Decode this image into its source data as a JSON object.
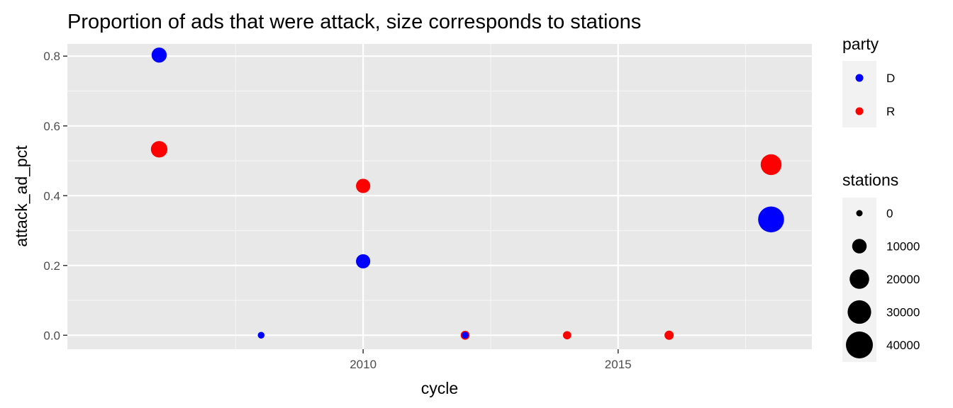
{
  "chart_data": {
    "type": "scatter",
    "title": "Proportion of ads that were attack, size corresponds to stations",
    "xlabel": "cycle",
    "ylabel": "attack_ad_pct",
    "xlim": [
      2004.2,
      2018.8
    ],
    "ylim": [
      -0.04,
      0.835
    ],
    "x_ticks": [
      2010,
      2015
    ],
    "y_ticks": [
      0.0,
      0.2,
      0.4,
      0.6,
      0.8
    ],
    "y_tick_labels": [
      "0.0",
      "0.2",
      "0.4",
      "0.6",
      "0.8"
    ],
    "grid": true,
    "legend_placement": "right",
    "colors": {
      "D": "#0000ff",
      "R": "#ff0000",
      "panel": "#e8e8e8",
      "legend_key": "#f2f2f2"
    },
    "color_legend": {
      "title": "party",
      "entries": [
        {
          "label": "D",
          "color": "#0000ff"
        },
        {
          "label": "R",
          "color": "#ff0000"
        }
      ]
    },
    "size_legend": {
      "title": "stations",
      "entries": [
        {
          "label": "0",
          "value": 0
        },
        {
          "label": "10000",
          "value": 10000
        },
        {
          "label": "20000",
          "value": 20000
        },
        {
          "label": "30000",
          "value": 30000
        },
        {
          "label": "40000",
          "value": 40000
        }
      ]
    },
    "points": [
      {
        "cycle": 2006,
        "attack_ad_pct": 0.803,
        "party": "D",
        "stations": 11000
      },
      {
        "cycle": 2006,
        "attack_ad_pct": 0.533,
        "party": "R",
        "stations": 13500
      },
      {
        "cycle": 2008,
        "attack_ad_pct": 0.0,
        "party": "D",
        "stations": 300
      },
      {
        "cycle": 2010,
        "attack_ad_pct": 0.428,
        "party": "R",
        "stations": 9500
      },
      {
        "cycle": 2010,
        "attack_ad_pct": 0.212,
        "party": "D",
        "stations": 9500
      },
      {
        "cycle": 2012,
        "attack_ad_pct": 0.0,
        "party": "R",
        "stations": 2300
      },
      {
        "cycle": 2012,
        "attack_ad_pct": 0.0,
        "party": "D",
        "stations": 300
      },
      {
        "cycle": 2014,
        "attack_ad_pct": 0.0,
        "party": "R",
        "stations": 1600
      },
      {
        "cycle": 2016,
        "attack_ad_pct": 0.0,
        "party": "R",
        "stations": 2600
      },
      {
        "cycle": 2018,
        "attack_ad_pct": 0.489,
        "party": "R",
        "stations": 23000
      },
      {
        "cycle": 2018,
        "attack_ad_pct": 0.332,
        "party": "D",
        "stations": 37000
      }
    ]
  }
}
